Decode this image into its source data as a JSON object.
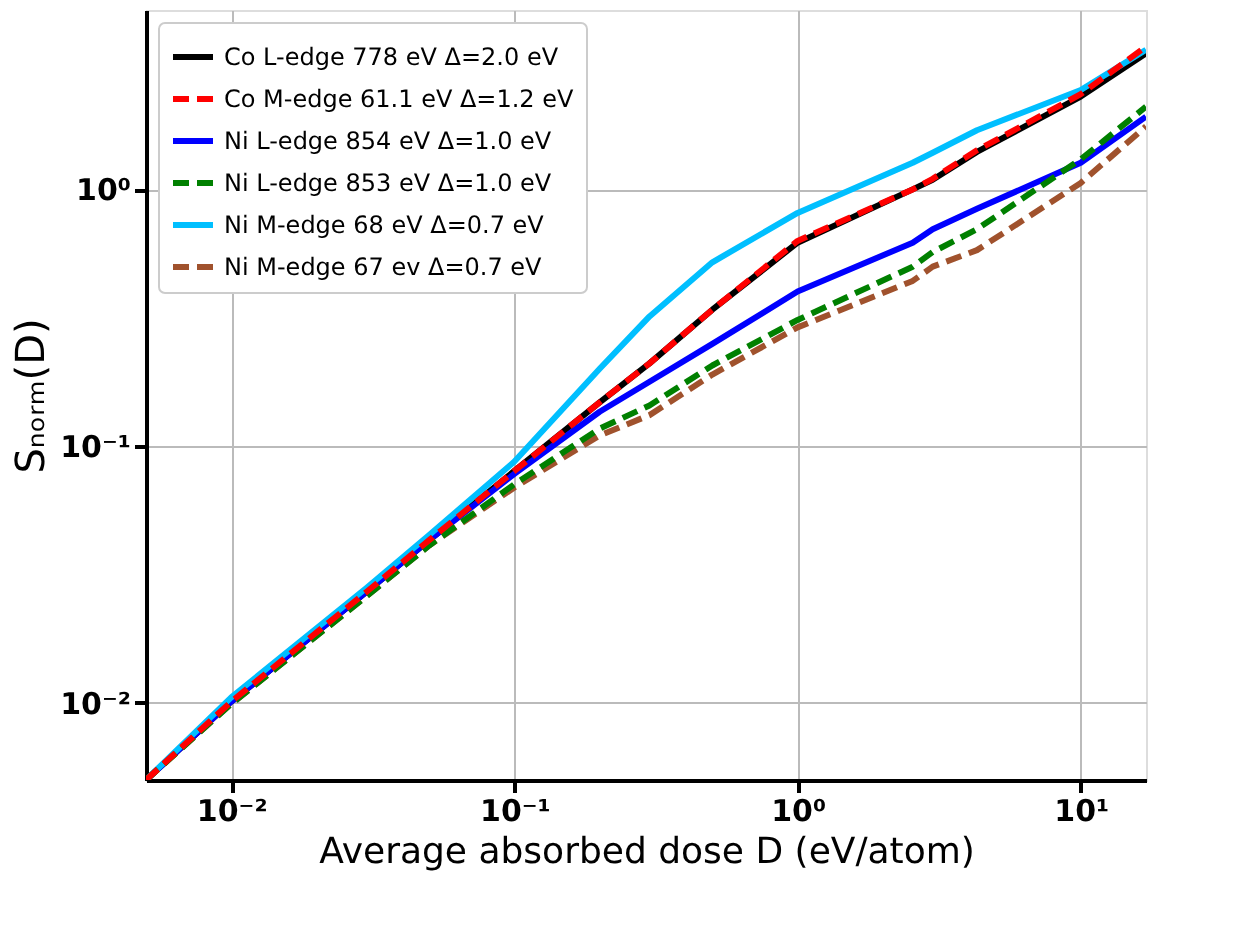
{
  "chart_data": {
    "type": "line",
    "xlabel": "Average absorbed dose D (eV/atom)",
    "ylabel": "Sₙₒᵣₘ(D)",
    "log": "xy",
    "grid": true,
    "legend": "top left",
    "xlim": [
      0.005,
      17
    ],
    "ylim": [
      0.005,
      5
    ],
    "xticks": [
      {
        "value": 0.01,
        "label": "10⁻²"
      },
      {
        "value": 0.1,
        "label": "10⁻¹"
      },
      {
        "value": 1,
        "label": "10⁰"
      },
      {
        "value": 10,
        "label": "10¹"
      }
    ],
    "yticks": [
      {
        "value": 0.01,
        "label": "10⁻²"
      },
      {
        "value": 0.1,
        "label": "10⁻¹"
      },
      {
        "value": 1,
        "label": "10⁰"
      }
    ],
    "x": [
      0.005,
      0.01,
      0.03,
      0.05,
      0.1,
      0.2,
      0.3,
      0.5,
      1,
      2.55,
      3,
      4.3,
      10,
      17
    ],
    "series": [
      {
        "name": "Co L-edge 778 eV Δ=2.0 eV",
        "color": "#000000",
        "line_style": "solid",
        "values": [
          0.005,
          0.0101,
          0.027,
          0.043,
          0.08,
          0.148,
          0.21,
          0.34,
          0.62,
          1.0,
          1.09,
          1.4,
          2.3,
          3.39
        ]
      },
      {
        "name": "Co M-edge 61.1 eV Δ=1.2 eV",
        "color": "#ff0000",
        "line_style": "dashed",
        "values": [
          0.005,
          0.0101,
          0.027,
          0.043,
          0.08,
          0.148,
          0.21,
          0.34,
          0.63,
          1.0,
          1.1,
          1.42,
          2.35,
          3.6
        ]
      },
      {
        "name": "Ni L-edge 854 eV Δ=1.0 eV",
        "color": "#0000ff",
        "line_style": "solid",
        "values": [
          0.005,
          0.0101,
          0.027,
          0.043,
          0.078,
          0.136,
          0.178,
          0.25,
          0.4,
          0.62,
          0.7,
          0.84,
          1.27,
          1.92
        ]
      },
      {
        "name": "Ni L-edge 853 eV Δ=1.0 eV",
        "color": "#008000",
        "line_style": "dashed",
        "values": [
          0.005,
          0.0099,
          0.026,
          0.041,
          0.071,
          0.117,
          0.144,
          0.206,
          0.31,
          0.5,
          0.57,
          0.7,
          1.31,
          2.1
        ]
      },
      {
        "name": "Ni M-edge 68 eV Δ=0.7 eV",
        "color": "#00bfff",
        "line_style": "solid",
        "values": [
          0.005,
          0.0105,
          0.028,
          0.045,
          0.087,
          0.2,
          0.32,
          0.52,
          0.81,
          1.27,
          1.39,
          1.7,
          2.44,
          3.5
        ]
      },
      {
        "name": "Ni M-edge 67 ev Δ=0.7 eV",
        "color": "#a0522d",
        "line_style": "dashed",
        "values": [
          0.005,
          0.0099,
          0.026,
          0.041,
          0.069,
          0.11,
          0.132,
          0.19,
          0.29,
          0.44,
          0.5,
          0.58,
          1.06,
          1.76
        ]
      }
    ]
  }
}
